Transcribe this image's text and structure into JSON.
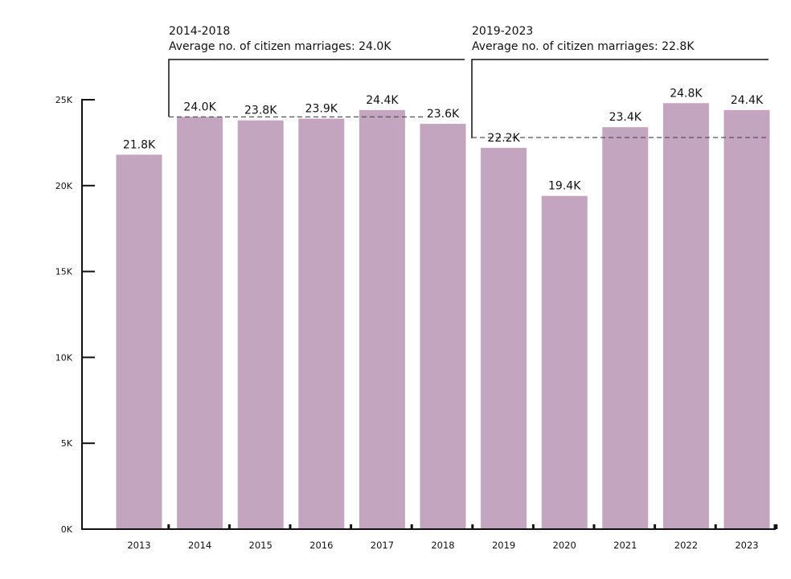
{
  "chart_data": {
    "type": "bar",
    "categories": [
      "2013",
      "2014",
      "2015",
      "2016",
      "2017",
      "2018",
      "2019",
      "2020",
      "2021",
      "2022",
      "2023"
    ],
    "values": [
      21.8,
      24.0,
      23.8,
      23.9,
      24.4,
      23.6,
      22.2,
      19.4,
      23.4,
      24.8,
      24.4
    ],
    "data_labels": [
      "21.8K",
      "24.0K",
      "23.8K",
      "23.9K",
      "24.4K",
      "23.6K",
      "22.2K",
      "19.4K",
      "23.4K",
      "24.8K",
      "24.4K"
    ],
    "y_ticks": [
      0,
      5,
      10,
      15,
      20,
      25
    ],
    "y_tick_labels": [
      "0K",
      "5K",
      "10K",
      "15K",
      "20K",
      "25K"
    ],
    "ylim": [
      0,
      25
    ],
    "bar_color": "#c3a5bf",
    "grid": false,
    "periods": [
      {
        "title": "2014-2018",
        "subtitle": "Average no. of citizen marriages: 24.0K",
        "start": "2014",
        "end": "2018",
        "average": 24.0
      },
      {
        "title": "2019-2023",
        "subtitle": "Average no. of citizen marriages: 22.8K",
        "start": "2019",
        "end": "2023",
        "average": 22.8
      }
    ]
  }
}
